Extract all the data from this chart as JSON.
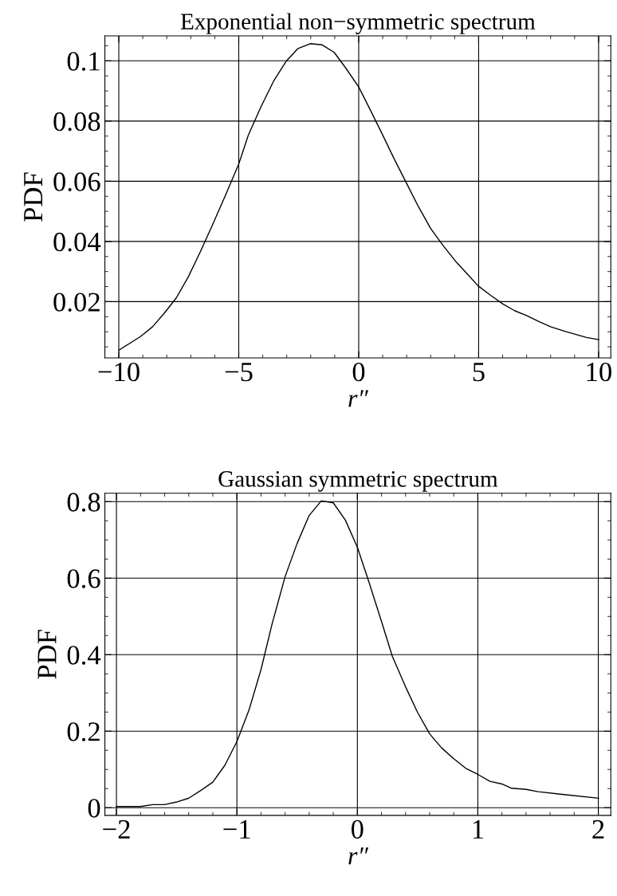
{
  "chart_data": [
    {
      "type": "line",
      "title": "Exponential non−symmetric spectrum",
      "xlabel": "r″",
      "ylabel": "PDF",
      "x": [
        -10,
        -9.1,
        -8.6,
        -8.1,
        -7.6,
        -7.1,
        -6.6,
        -6.1,
        -5.55,
        -5,
        -4.6,
        -4.07,
        -3.55,
        -3.03,
        -2.53,
        -2.02,
        -1.52,
        -1.02,
        -0.53,
        0,
        0.47,
        0.98,
        1.48,
        1.99,
        2.48,
        3,
        3.52,
        4.03,
        4.53,
        4.97,
        5.5,
        6,
        6.5,
        7,
        7.53,
        8.02,
        8.57,
        9.06,
        9.5,
        10
      ],
      "series": [
        {
          "color": "#000000",
          "values": [
            0.0039,
            0.0084,
            0.0116,
            0.0162,
            0.0213,
            0.0283,
            0.0366,
            0.0454,
            0.0554,
            0.0657,
            0.0753,
            0.0848,
            0.0932,
            0.0998,
            0.1041,
            0.1057,
            0.1053,
            0.1028,
            0.0975,
            0.0913,
            0.0839,
            0.0757,
            0.0674,
            0.0594,
            0.0517,
            0.0443,
            0.0386,
            0.0335,
            0.0292,
            0.0253,
            0.0221,
            0.0193,
            0.017,
            0.0154,
            0.0133,
            0.0116,
            0.0102,
            0.0091,
            0.0081,
            0.0074
          ]
        }
      ],
      "xlim": [
        -10.58,
        10.51
      ],
      "ylim": [
        0.0013,
        0.1083
      ],
      "xticks": [
        {
          "value": -10,
          "label": "−10"
        },
        {
          "value": -5,
          "label": "−5"
        },
        0,
        5,
        10
      ],
      "yticks": [
        0.02,
        0.04,
        0.06,
        0.08,
        0.1
      ],
      "grid": true,
      "marker": "none",
      "line_style": "solid"
    },
    {
      "type": "line",
      "title": "Gaussian symmetric spectrum",
      "xlabel": "r″",
      "ylabel": "PDF",
      "x": [
        -2,
        -1.8,
        -1.7,
        -1.6,
        -1.5,
        -1.4,
        -1.3,
        -1.2,
        -1.1,
        -1,
        -0.9,
        -0.8,
        -0.71,
        -0.6,
        -0.5,
        -0.4,
        -0.3,
        -0.2,
        -0.1,
        0,
        0.1,
        0.2,
        0.29,
        0.4,
        0.5,
        0.6,
        0.7,
        0.8,
        0.9,
        1,
        1.1,
        1.2,
        1.28,
        1.4,
        1.5,
        1.7,
        2
      ],
      "series": [
        {
          "color": "#000000",
          "values": [
            0.003,
            0.003,
            0.008,
            0.008,
            0.015,
            0.025,
            0.045,
            0.067,
            0.111,
            0.173,
            0.255,
            0.361,
            0.478,
            0.604,
            0.691,
            0.764,
            0.802,
            0.797,
            0.752,
            0.681,
            0.586,
            0.487,
            0.396,
            0.316,
            0.249,
            0.193,
            0.156,
            0.128,
            0.103,
            0.087,
            0.069,
            0.062,
            0.051,
            0.048,
            0.042,
            0.035,
            0.025
          ]
        }
      ],
      "xlim": [
        -2.096,
        2.104
      ],
      "ylim": [
        -0.02,
        0.822
      ],
      "xticks": [
        {
          "value": -2,
          "label": "−2"
        },
        {
          "value": -1,
          "label": "−1"
        },
        0,
        1,
        2
      ],
      "yticks": [
        0,
        0.2,
        0.4,
        0.6,
        0.8
      ],
      "grid": true,
      "marker": "none",
      "line_style": "solid"
    }
  ]
}
